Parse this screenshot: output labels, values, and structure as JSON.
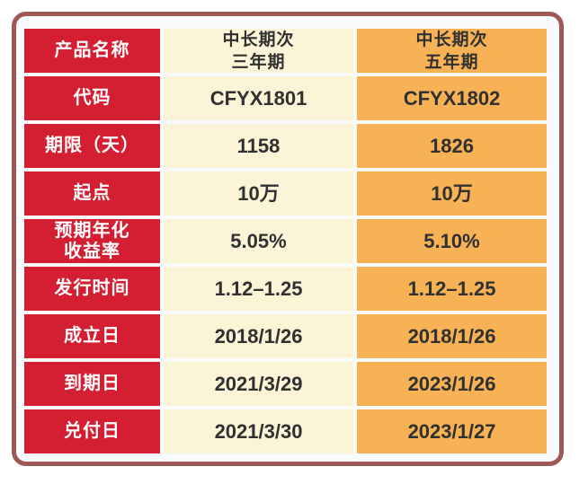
{
  "colors": {
    "red": "#d41e31",
    "cream": "#fcf4d7",
    "orange": "#f6b254",
    "frame_border": "#a05757",
    "frame_background": "#f8fafb",
    "label_text": "#ffffff",
    "value_text": "#303030"
  },
  "chart_data": {
    "type": "table",
    "title": "",
    "columns": [
      "产品名称",
      "中长期次 三年期",
      "中长期次 五年期"
    ],
    "rows": [
      {
        "label": "产品名称",
        "col1": "中长期次\n三年期",
        "col2": "中长期次\n五年期"
      },
      {
        "label": "代码",
        "col1": "CFYX1801",
        "col2": "CFYX1802"
      },
      {
        "label": "期限（天）",
        "col1": "1158",
        "col2": "1826"
      },
      {
        "label": "起点",
        "col1": "10万",
        "col2": "10万"
      },
      {
        "label": "预期年化\n收益率",
        "col1": "5.05%",
        "col2": "5.10%"
      },
      {
        "label": "发行时间",
        "col1": "1.12–1.25",
        "col2": "1.12–1.25"
      },
      {
        "label": "成立日",
        "col1": "2018/1/26",
        "col2": "2018/1/26"
      },
      {
        "label": "到期日",
        "col1": "2021/3/29",
        "col2": "2023/1/26"
      },
      {
        "label": "兑付日",
        "col1": "2021/3/30",
        "col2": "2023/1/27"
      }
    ]
  }
}
